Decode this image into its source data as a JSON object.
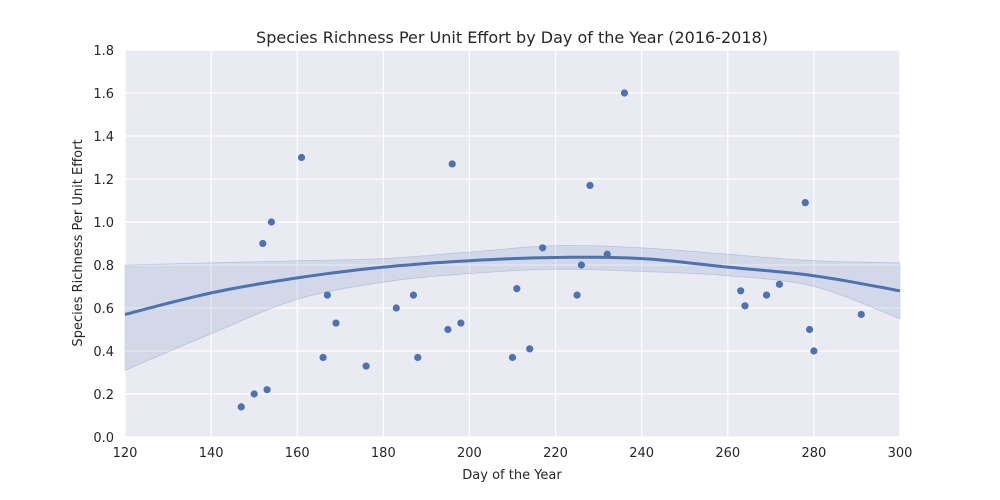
{
  "chart_data": {
    "type": "scatter",
    "title": "Species Richness Per Unit Effort by Day of the Year (2016-2018)",
    "xlabel": "Day of the Year",
    "ylabel": "Species Richness Per Unit Effort",
    "xlim": [
      120,
      300
    ],
    "ylim": [
      0.0,
      1.8
    ],
    "xticks": [
      "120",
      "140",
      "160",
      "180",
      "200",
      "220",
      "240",
      "260",
      "280",
      "300"
    ],
    "yticks": [
      "0.0",
      "0.2",
      "0.4",
      "0.6",
      "0.8",
      "1.0",
      "1.2",
      "1.4",
      "1.6",
      "1.8"
    ],
    "grid": true,
    "legend": "none",
    "point_color": "#4c72b0",
    "background_color": "#eaeaf2",
    "points": [
      {
        "x": 147,
        "y": 0.14
      },
      {
        "x": 150,
        "y": 0.2
      },
      {
        "x": 152,
        "y": 0.9
      },
      {
        "x": 153,
        "y": 0.22
      },
      {
        "x": 154,
        "y": 1.0
      },
      {
        "x": 161,
        "y": 1.3
      },
      {
        "x": 166,
        "y": 0.37
      },
      {
        "x": 167,
        "y": 0.66
      },
      {
        "x": 169,
        "y": 0.53
      },
      {
        "x": 176,
        "y": 0.33
      },
      {
        "x": 183,
        "y": 0.6
      },
      {
        "x": 187,
        "y": 0.66
      },
      {
        "x": 188,
        "y": 0.37
      },
      {
        "x": 195,
        "y": 0.5
      },
      {
        "x": 196,
        "y": 1.27
      },
      {
        "x": 198,
        "y": 0.53
      },
      {
        "x": 210,
        "y": 0.37
      },
      {
        "x": 211,
        "y": 0.69
      },
      {
        "x": 214,
        "y": 0.41
      },
      {
        "x": 217,
        "y": 0.88
      },
      {
        "x": 225,
        "y": 0.66
      },
      {
        "x": 226,
        "y": 0.8
      },
      {
        "x": 228,
        "y": 1.17
      },
      {
        "x": 232,
        "y": 0.85
      },
      {
        "x": 236,
        "y": 1.6
      },
      {
        "x": 263,
        "y": 0.68
      },
      {
        "x": 264,
        "y": 0.61
      },
      {
        "x": 269,
        "y": 0.66
      },
      {
        "x": 272,
        "y": 0.71
      },
      {
        "x": 278,
        "y": 1.09
      },
      {
        "x": 279,
        "y": 0.5
      },
      {
        "x": 280,
        "y": 0.4
      },
      {
        "x": 291,
        "y": 0.57
      }
    ],
    "fit_curve": {
      "x": [
        120,
        140,
        160,
        180,
        200,
        220,
        240,
        260,
        280,
        300
      ],
      "y": [
        0.57,
        0.67,
        0.74,
        0.79,
        0.82,
        0.835,
        0.83,
        0.79,
        0.75,
        0.68
      ],
      "lower": [
        0.31,
        0.48,
        0.64,
        0.72,
        0.76,
        0.78,
        0.77,
        0.75,
        0.7,
        0.55
      ],
      "upper": [
        0.8,
        0.81,
        0.82,
        0.83,
        0.86,
        0.89,
        0.88,
        0.85,
        0.82,
        0.81
      ]
    }
  }
}
